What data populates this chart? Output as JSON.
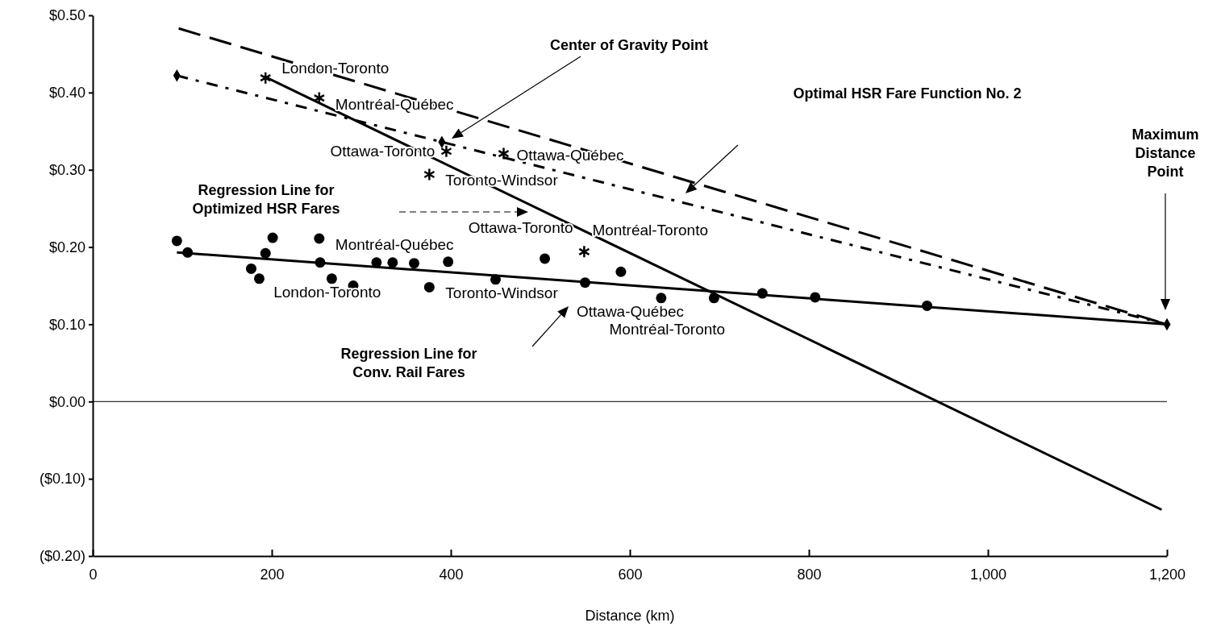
{
  "chart_data": {
    "type": "scatter",
    "xlabel": "Distance (km)",
    "xlim": [
      0,
      1200
    ],
    "ylim": [
      -0.2,
      0.5
    ],
    "xticks": [
      0,
      200,
      400,
      600,
      800,
      {
        "value": 1000,
        "label": "1,000"
      },
      {
        "value": 1200,
        "label": "1,200"
      }
    ],
    "yticks": [
      {
        "value": -0.2,
        "label": "($0.20)"
      },
      {
        "value": -0.1,
        "label": "($0.10)"
      },
      {
        "value": 0,
        "label": "$0.00"
      },
      {
        "value": 0.1,
        "label": "$0.10"
      },
      {
        "value": 0.2,
        "label": "$0.20"
      },
      {
        "value": 0.3,
        "label": "$0.30"
      },
      {
        "value": 0.4,
        "label": "$0.40"
      },
      {
        "value": 0.5,
        "label": "$0.50"
      }
    ],
    "ref_lines": [
      {
        "axis": "y",
        "value": 0,
        "color": "#000000"
      }
    ],
    "series": [
      {
        "type": "scatter",
        "marker": "circle",
        "color": "#000000",
        "x": [
          94,
          106,
          177,
          186,
          193,
          201,
          253,
          254,
          267,
          291,
          317,
          335,
          359,
          376,
          397,
          450,
          505,
          550,
          590,
          635,
          694,
          748,
          807,
          932
        ],
        "values": [
          0.208,
          0.193,
          0.172,
          0.159,
          0.192,
          0.212,
          0.211,
          0.18,
          0.159,
          0.15,
          0.18,
          0.18,
          0.179,
          0.148,
          0.181,
          0.158,
          0.185,
          0.154,
          0.168,
          0.134,
          0.134,
          0.14,
          0.135,
          0.124
        ]
      },
      {
        "type": "scatter",
        "marker": "cross",
        "color": "#000000",
        "x": [
          193,
          253,
          395,
          459,
          376,
          549
        ],
        "values": [
          0.419,
          0.393,
          0.324,
          0.321,
          0.294,
          0.194
        ]
      },
      {
        "type": "line",
        "line_style": "solid",
        "color": "#000000",
        "x": [
          94,
          1200
        ],
        "values": [
          0.193,
          0.1
        ]
      },
      {
        "type": "line",
        "line_style": "solid",
        "color": "#000000",
        "x": [
          193,
          1194
        ],
        "values": [
          0.42,
          -0.14
        ]
      },
      {
        "type": "line",
        "line_style": "dashed",
        "color": "#000000",
        "x": [
          96,
          1200
        ],
        "values": [
          0.483,
          0.1
        ]
      },
      {
        "type": "line",
        "marker": "diamond",
        "line_style": "dotted",
        "color": "#000000",
        "x": [
          94,
          390,
          1200
        ],
        "values": [
          0.422,
          0.336,
          0.1
        ]
      }
    ],
    "annotations": [
      {
        "text": "London-Toronto",
        "x": 193,
        "y": 0.419
      },
      {
        "text": "Montréal-Québec",
        "x": 253,
        "y": 0.393
      },
      {
        "text": "Ottawa-Toronto",
        "x": 395,
        "y": 0.324
      },
      {
        "text": "Ottawa-Québec",
        "x": 459,
        "y": 0.321
      },
      {
        "text": "Toronto-Windsor",
        "x": 376,
        "y": 0.294
      },
      {
        "text": "Montréal-Toronto",
        "x": 549,
        "y": 0.194
      },
      {
        "text": "Montréal-Québec",
        "x": 253,
        "y": 0.211
      },
      {
        "text": "London-Toronto",
        "x": 193,
        "y": 0.192
      },
      {
        "text": "Ottawa-Toronto",
        "x": 397,
        "y": 0.181
      },
      "Ottawa-Québec",
      {
        "text": "Toronto-Windsor",
        "x": 376,
        "y": 0.148
      },
      {
        "text": "Montréal-Toronto",
        "x": 550,
        "y": 0.154
      },
      "Center of Gravity Point",
      "Optimal HSR Fare Function No. 2",
      "Maximum Distance Point",
      "Regression Line for Optimized HSR Fares",
      "Regression Line for Conv. Rail Fares"
    ]
  }
}
